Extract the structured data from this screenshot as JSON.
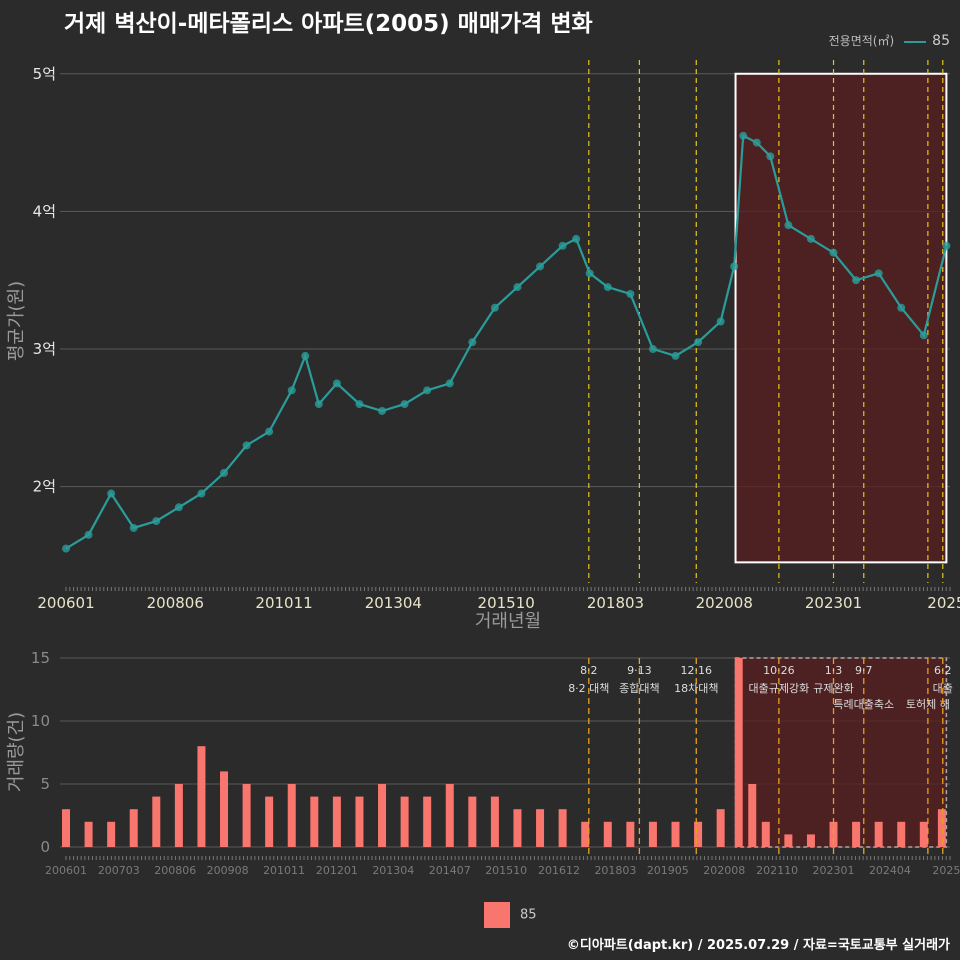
{
  "title": "거제 벽산이-메타폴리스 아파트(2005) 매매가격 변화",
  "credit": "©디아파트(dapt.kr) / 2025.07.29 / 자료=국토교통부 실거래가",
  "colors": {
    "line": "#2a9d9a",
    "bar": "#f8766d",
    "policy": "#e6c619",
    "highlight": "#5a1e1e"
  },
  "chart_data": [
    {
      "type": "line",
      "title": "거제 벽산이-메타폴리스 아파트(2005) 매매가격 변화",
      "xlabel": "거래년월",
      "ylabel": "평균가(원)",
      "legend_title": "전용면적(㎡)",
      "legend_label": "85",
      "x_range": [
        2006.0,
        2025.58
      ],
      "ylim": [
        1.3,
        5.1
      ],
      "y_ticks": [
        2,
        3,
        4,
        5
      ],
      "y_tick_labels": [
        "2억",
        "3억",
        "4억",
        "5억"
      ],
      "x_tick_labels": [
        "200601",
        "200806",
        "201011",
        "201304",
        "201510",
        "201803",
        "202008",
        "202301",
        "2025"
      ],
      "x_tick_positions": [
        2006.0,
        2008.42,
        2010.83,
        2013.25,
        2015.75,
        2018.17,
        2020.58,
        2023.0,
        2025.5
      ],
      "highlight": {
        "x": [
          2020.83,
          2025.5
        ],
        "y": [
          1.45,
          5.0
        ]
      },
      "policy_lines": [
        2017.58,
        2018.7,
        2019.96,
        2021.79,
        2023.0,
        2023.67,
        2025.09,
        2025.42
      ],
      "series": [
        {
          "name": "85",
          "x": [
            2006.0,
            2006.5,
            2007.0,
            2007.5,
            2008.0,
            2008.5,
            2009.0,
            2009.5,
            2010.0,
            2010.5,
            2011.0,
            2011.3,
            2011.6,
            2012.0,
            2012.5,
            2013.0,
            2013.5,
            2014.0,
            2014.5,
            2015.0,
            2015.5,
            2016.0,
            2016.5,
            2017.0,
            2017.3,
            2017.6,
            2018.0,
            2018.5,
            2019.0,
            2019.5,
            2020.0,
            2020.5,
            2020.8,
            2021.0,
            2021.3,
            2021.6,
            2022.0,
            2022.5,
            2023.0,
            2023.5,
            2024.0,
            2024.5,
            2025.0,
            2025.5
          ],
          "values": [
            1.55,
            1.65,
            1.95,
            1.7,
            1.75,
            1.85,
            1.95,
            2.1,
            2.3,
            2.4,
            2.7,
            2.95,
            2.6,
            2.75,
            2.6,
            2.55,
            2.6,
            2.7,
            2.75,
            3.05,
            3.3,
            3.45,
            3.6,
            3.75,
            3.8,
            3.55,
            3.45,
            3.4,
            3.0,
            2.95,
            3.05,
            3.2,
            3.6,
            4.55,
            4.5,
            4.4,
            3.9,
            3.8,
            3.7,
            3.5,
            3.55,
            3.3,
            3.1,
            3.75
          ]
        }
      ]
    },
    {
      "type": "bar",
      "ylabel": "거래량(건)",
      "ylim": [
        0,
        15
      ],
      "y_ticks": [
        0,
        5,
        10,
        15
      ],
      "x_tick_labels": [
        "200601",
        "200703",
        "200806",
        "200908",
        "201011",
        "201201",
        "201304",
        "201407",
        "201510",
        "201612",
        "201803",
        "201905",
        "202008",
        "202110",
        "202301",
        "202404",
        "2025"
      ],
      "x_tick_positions": [
        2006.0,
        2007.17,
        2008.42,
        2009.58,
        2010.83,
        2012.0,
        2013.25,
        2014.5,
        2015.75,
        2016.92,
        2018.17,
        2019.33,
        2020.58,
        2021.75,
        2023.0,
        2024.25,
        2025.5
      ],
      "legend_label": "85",
      "highlight": {
        "x": [
          2020.83,
          2025.5
        ]
      },
      "policy_annotations": [
        {
          "x": 2017.58,
          "date": "8·2",
          "label": "8·2 대책"
        },
        {
          "x": 2018.7,
          "date": "9·13",
          "label": "종합대책"
        },
        {
          "x": 2019.96,
          "date": "12·16",
          "label": "18차대책"
        },
        {
          "x": 2021.79,
          "date": "10·26",
          "label": "대출규제강화"
        },
        {
          "x": 2023.0,
          "date": "1·3",
          "label": "규제완화"
        },
        {
          "x": 2023.67,
          "date": "9·7",
          "label": "특례대출축소"
        },
        {
          "x": 2025.09,
          "date": "",
          "label": "토허제 해"
        },
        {
          "x": 2025.42,
          "date": "6·2",
          "label": "대출"
        }
      ],
      "series": [
        {
          "name": "85",
          "x": [
            2006.0,
            2006.5,
            2007.0,
            2007.5,
            2008.0,
            2008.5,
            2009.0,
            2009.5,
            2010.0,
            2010.5,
            2011.0,
            2011.5,
            2012.0,
            2012.5,
            2013.0,
            2013.5,
            2014.0,
            2014.5,
            2015.0,
            2015.5,
            2016.0,
            2016.5,
            2017.0,
            2017.5,
            2018.0,
            2018.5,
            2019.0,
            2019.5,
            2020.0,
            2020.5,
            2020.9,
            2021.2,
            2021.5,
            2022.0,
            2022.5,
            2023.0,
            2023.5,
            2024.0,
            2024.5,
            2025.0,
            2025.4
          ],
          "values": [
            3,
            2,
            2,
            3,
            4,
            5,
            8,
            6,
            5,
            4,
            5,
            4,
            4,
            4,
            5,
            4,
            4,
            5,
            4,
            4,
            3,
            3,
            3,
            2,
            2,
            2,
            2,
            2,
            2,
            3,
            15,
            5,
            2,
            1,
            1,
            2,
            2,
            2,
            2,
            2,
            3
          ]
        }
      ]
    }
  ]
}
